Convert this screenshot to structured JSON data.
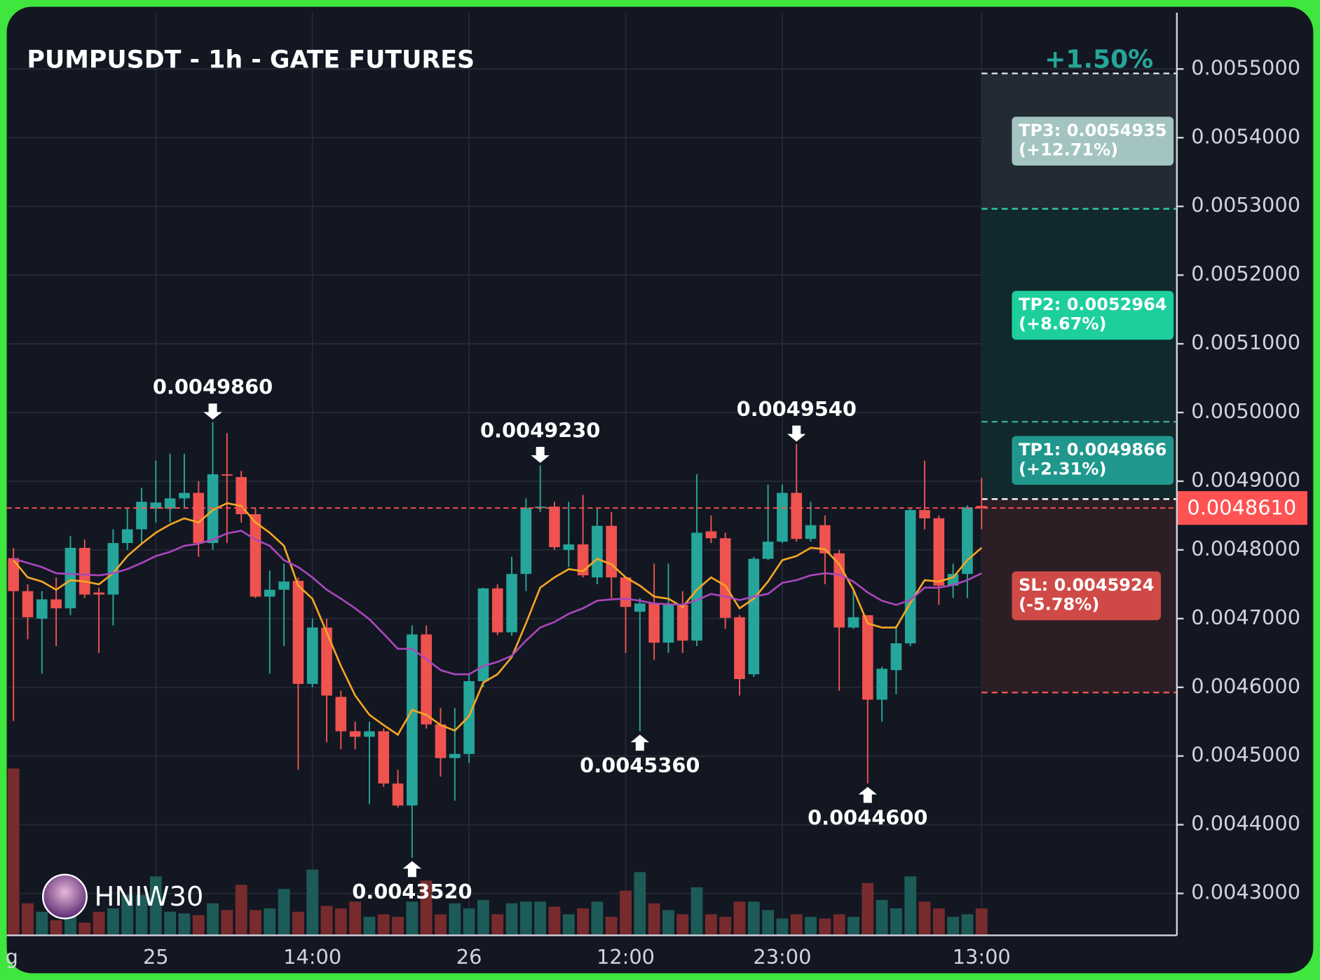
{
  "chart_data": {
    "type": "candlestick",
    "title": "PUMPUSDT - 1h - GATE FUTURES",
    "change_label": "+1.50%",
    "watermark": "HNIW30",
    "categories": [
      "g",
      null,
      null,
      null,
      null,
      null,
      null,
      null,
      null,
      null,
      "25",
      null,
      null,
      null,
      null,
      null,
      null,
      null,
      null,
      null,
      null,
      "14:00",
      null,
      null,
      null,
      null,
      null,
      null,
      null,
      null,
      null,
      null,
      "26",
      null,
      null,
      null,
      null,
      null,
      null,
      null,
      null,
      null,
      null,
      "12:00",
      null,
      null,
      null,
      null,
      null,
      null,
      null,
      null,
      null,
      null,
      "23:00",
      null,
      null,
      null,
      null,
      null,
      null,
      null,
      null,
      null,
      null,
      null,
      null,
      null,
      "13:00"
    ],
    "open": [
      0.004788,
      0.00474,
      0.0047,
      0.004728,
      0.004715,
      0.004803,
      0.004738,
      0.004735,
      0.00481,
      0.00483,
      0.00486,
      0.00486,
      0.004875,
      0.004883,
      0.00481,
      0.00491,
      0.004906,
      0.004852,
      0.004732,
      0.004742,
      0.004755,
      0.004605,
      0.004687,
      0.004586,
      0.004536,
      0.004528,
      0.004536,
      0.00446,
      0.004428,
      0.004677,
      0.004546,
      0.004497,
      0.004503,
      0.004609,
      0.004744,
      0.00468,
      0.004765,
      0.004861,
      0.004863,
      0.0048,
      0.004808,
      0.00476,
      0.004835,
      0.00476,
      0.00471,
      0.004722,
      0.004665,
      0.00472,
      0.004668,
      0.004827,
      0.004817,
      0.004702,
      0.004619,
      0.004787,
      0.004812,
      0.004883,
      0.004816,
      0.004836,
      0.004795,
      0.004687,
      0.004705,
      0.004582,
      0.004625,
      0.004664,
      0.004858,
      0.004846,
      0.004748,
      0.004765,
      0.004864
    ],
    "high": [
      0.004803,
      0.00475,
      0.00474,
      0.00476,
      0.00482,
      0.004815,
      0.004745,
      0.00483,
      0.00486,
      0.00489,
      0.00493,
      0.00494,
      0.00494,
      0.0049,
      0.004986,
      0.00497,
      0.004915,
      0.00486,
      0.00477,
      0.00478,
      0.00476,
      0.0047,
      0.0047,
      0.004595,
      0.00455,
      0.00455,
      0.00454,
      0.00448,
      0.00469,
      0.00469,
      0.00457,
      0.00457,
      0.00462,
      0.004745,
      0.00475,
      0.00479,
      0.004875,
      0.004923,
      0.00487,
      0.00487,
      0.00488,
      0.00486,
      0.004855,
      0.00476,
      0.00473,
      0.00478,
      0.00478,
      0.00474,
      0.00491,
      0.00485,
      0.004825,
      0.004705,
      0.00479,
      0.004895,
      0.004895,
      0.004954,
      0.00487,
      0.00485,
      0.0048,
      0.00474,
      0.004705,
      0.00463,
      0.00469,
      0.00486,
      0.00493,
      0.00485,
      0.00478,
      0.004865,
      0.004905
    ],
    "low": [
      0.004551,
      0.00467,
      0.00462,
      0.00466,
      0.004705,
      0.00473,
      0.00465,
      0.00469,
      0.0048,
      0.00481,
      0.00484,
      0.00484,
      0.00486,
      0.00479,
      0.0048,
      0.00481,
      0.00484,
      0.00473,
      0.00462,
      0.00466,
      0.00448,
      0.0046,
      0.00452,
      0.00451,
      0.00451,
      0.00443,
      0.004455,
      0.004425,
      0.004352,
      0.00454,
      0.00447,
      0.004435,
      0.00449,
      0.0046,
      0.004676,
      0.004675,
      0.00474,
      0.004855,
      0.0048,
      0.004775,
      0.00476,
      0.00475,
      0.00473,
      0.00465,
      0.004536,
      0.00464,
      0.00465,
      0.00465,
      0.00466,
      0.00481,
      0.004685,
      0.004588,
      0.004615,
      0.004785,
      0.00481,
      0.004812,
      0.004812,
      0.00475,
      0.004595,
      0.004685,
      0.00446,
      0.00455,
      0.00459,
      0.00466,
      0.00483,
      0.00472,
      0.00473,
      0.00473,
      0.00483
    ],
    "close": [
      0.00474,
      0.004702,
      0.004728,
      0.004715,
      0.004803,
      0.004735,
      0.004735,
      0.00481,
      0.00483,
      0.00487,
      0.004869,
      0.004875,
      0.004883,
      0.00481,
      0.00491,
      0.004908,
      0.004852,
      0.004732,
      0.004742,
      0.004754,
      0.004605,
      0.004687,
      0.004588,
      0.004536,
      0.004528,
      0.004536,
      0.00446,
      0.004428,
      0.004677,
      0.004546,
      0.004497,
      0.004503,
      0.004609,
      0.004744,
      0.00468,
      0.004765,
      0.004861,
      0.004863,
      0.004804,
      0.004808,
      0.004763,
      0.004835,
      0.00476,
      0.004717,
      0.004722,
      0.004665,
      0.00472,
      0.004668,
      0.004825,
      0.004817,
      0.004701,
      0.004612,
      0.004787,
      0.004812,
      0.004883,
      0.004816,
      0.004836,
      0.004795,
      0.004687,
      0.004702,
      0.004582,
      0.004627,
      0.004664,
      0.004858,
      0.004846,
      0.004748,
      0.004765,
      0.004862,
      0.004861
    ],
    "volume": [
      198,
      38,
      28,
      18,
      28,
      15,
      28,
      32,
      48,
      48,
      70,
      28,
      26,
      24,
      38,
      30,
      60,
      30,
      32,
      55,
      28,
      78,
      35,
      32,
      40,
      22,
      25,
      22,
      40,
      65,
      25,
      38,
      32,
      42,
      25,
      38,
      40,
      40,
      34,
      25,
      32,
      40,
      22,
      53,
      75,
      38,
      30,
      25,
      57,
      25,
      22,
      40,
      40,
      30,
      20,
      25,
      22,
      20,
      25,
      22,
      62,
      42,
      32,
      70,
      40,
      32,
      22,
      25,
      32
    ],
    "high_value_labels": [
      null,
      null,
      null,
      null,
      null,
      null,
      null,
      null,
      null,
      null,
      null,
      null,
      null,
      null,
      "0.0049860",
      null,
      null,
      null,
      null,
      null,
      null,
      null,
      null,
      null,
      null,
      null,
      null,
      null,
      null,
      null,
      null,
      null,
      null,
      null,
      null,
      null,
      null,
      "0.0049230",
      null,
      null,
      null,
      null,
      null,
      null,
      null,
      null,
      null,
      null,
      null,
      null,
      null,
      null,
      null,
      null,
      null,
      "0.0049540",
      null,
      null,
      null,
      null,
      null,
      null,
      null,
      null,
      null,
      null,
      null,
      null,
      null
    ],
    "low_value_labels": [
      null,
      null,
      null,
      null,
      null,
      null,
      null,
      null,
      null,
      null,
      null,
      null,
      null,
      null,
      null,
      null,
      null,
      null,
      null,
      null,
      null,
      null,
      null,
      null,
      null,
      null,
      null,
      null,
      "0.0043520",
      null,
      null,
      null,
      null,
      null,
      null,
      null,
      null,
      null,
      null,
      null,
      null,
      null,
      null,
      null,
      "0.0045360",
      null,
      null,
      null,
      null,
      null,
      null,
      null,
      null,
      null,
      null,
      null,
      null,
      null,
      null,
      null,
      "0.0044600",
      null,
      null,
      null,
      null,
      null,
      null,
      null,
      null
    ],
    "up_color": "#26a69a",
    "down_color": "#ef5350",
    "volume_up_color": "#1d5b58",
    "volume_down_color": "#782b2d",
    "lines": [
      {
        "color": "#f5a623",
        "values": [
          0.004785,
          0.00476,
          0.004754,
          0.004742,
          0.004756,
          0.004754,
          0.00475,
          0.004766,
          0.004791,
          0.004809,
          0.004825,
          0.004837,
          0.004846,
          0.00484,
          0.004858,
          0.004868,
          0.004864,
          0.00484,
          0.004825,
          0.004806,
          0.004748,
          0.004729,
          0.00468,
          0.004631,
          0.004588,
          0.00456,
          0.004545,
          0.004531,
          0.004567,
          0.00456,
          0.004545,
          0.004537,
          0.004558,
          0.004607,
          0.004619,
          0.004644,
          0.004693,
          0.004745,
          0.00476,
          0.004772,
          0.004769,
          0.004787,
          0.004779,
          0.00476,
          0.004748,
          0.004732,
          0.004729,
          0.004717,
          0.004742,
          0.00476,
          0.004748,
          0.004715,
          0.004729,
          0.004754,
          0.004785,
          0.004791,
          0.004803,
          0.004801,
          0.004779,
          0.004742,
          0.004693,
          0.004687,
          0.004687,
          0.004723,
          0.004756,
          0.004754,
          0.00476,
          0.004785,
          0.004803
        ]
      },
      {
        "color": "#ab47bc",
        "values": [
          0.004787,
          0.004781,
          0.004775,
          0.004766,
          0.004765,
          0.004764,
          0.004763,
          0.004766,
          0.004772,
          0.004781,
          0.004791,
          0.004797,
          0.004806,
          0.004809,
          0.004815,
          0.004824,
          0.004828,
          0.004815,
          0.004806,
          0.004785,
          0.004775,
          0.00476,
          0.004742,
          0.004729,
          0.004715,
          0.004699,
          0.004678,
          0.004656,
          0.004656,
          0.004641,
          0.004625,
          0.004619,
          0.004619,
          0.004631,
          0.004637,
          0.004646,
          0.004668,
          0.004687,
          0.004695,
          0.004707,
          0.004715,
          0.004726,
          0.004728,
          0.004729,
          0.004726,
          0.004722,
          0.004721,
          0.00472,
          0.004727,
          0.004736,
          0.004732,
          0.004727,
          0.004732,
          0.004736,
          0.004752,
          0.004756,
          0.004763,
          0.004766,
          0.004764,
          0.004754,
          0.004738,
          0.004726,
          0.00472,
          0.004727,
          0.004745,
          0.004745,
          0.004749,
          0.004756,
          0.004766
        ]
      }
    ],
    "last_price": {
      "value": 0.004861,
      "label": "0.0048610",
      "color": "#ff5252"
    },
    "entry": 0.004874,
    "levels": [
      {
        "label": "TP3: 0.0054935",
        "note": "(+12.71%)",
        "value": 0.0054935,
        "color": "#a3c4c1",
        "line": "#d6e4e4",
        "zone": "#222a33"
      },
      {
        "label": "TP2: 0.0052964",
        "note": "(+8.67%)",
        "value": 0.0052964,
        "color": "#1ecf9e",
        "line": "#2ed1a0",
        "zone": "#11292c"
      },
      {
        "label": "TP1: 0.0049866",
        "note": "(+2.31%)",
        "value": 0.0049866,
        "color": "#20978c",
        "line": "#3aa898",
        "zone": "#11292c"
      },
      {
        "label": "SL: 0.0045924",
        "note": "(-5.78%)",
        "value": 0.0045924,
        "color": "#cf4a47",
        "line": "#ef5350",
        "zone": "#2c1e25"
      }
    ],
    "ylim": [
      0.004239,
      0.005582
    ],
    "yticks": [
      {
        "value": 0.0043,
        "label": "0.0043000"
      },
      {
        "value": 0.0044,
        "label": "0.0044000"
      },
      {
        "value": 0.0045,
        "label": "0.0045000"
      },
      {
        "value": 0.0046,
        "label": "0.0046000"
      },
      {
        "value": 0.0047,
        "label": "0.0047000"
      },
      {
        "value": 0.0048,
        "label": "0.0048000"
      },
      {
        "value": 0.0049,
        "label": "0.0049000"
      },
      {
        "value": 0.005,
        "label": "0.0050000"
      },
      {
        "value": 0.0051,
        "label": "0.0051000"
      },
      {
        "value": 0.0052,
        "label": "0.0052000"
      },
      {
        "value": 0.0053,
        "label": "0.0053000"
      },
      {
        "value": 0.0054,
        "label": "0.0054000"
      },
      {
        "value": 0.0055,
        "label": "0.0055000"
      }
    ],
    "grid": true
  }
}
